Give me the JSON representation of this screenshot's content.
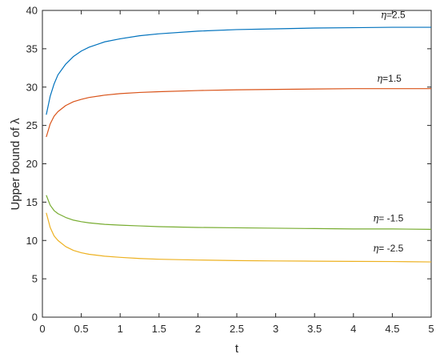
{
  "chart_data": {
    "type": "line",
    "title": "",
    "xlabel": "t",
    "ylabel": "Upper bound of λ",
    "xlim": [
      0,
      5
    ],
    "ylim": [
      0,
      40
    ],
    "xticks": [
      0,
      0.5,
      1,
      1.5,
      2,
      2.5,
      3,
      3.5,
      4,
      4.5,
      5
    ],
    "xtick_labels": [
      "0",
      "0.5",
      "1",
      "1.5",
      "2",
      "2.5",
      "3",
      "3.5",
      "4",
      "4.5",
      "5"
    ],
    "yticks": [
      0,
      5,
      10,
      15,
      20,
      25,
      30,
      35,
      40
    ],
    "ytick_labels": [
      "0",
      "5",
      "10",
      "15",
      "20",
      "25",
      "30",
      "35",
      "40"
    ],
    "grid": false,
    "legend": "none",
    "series": [
      {
        "name": "η=2.5",
        "label_symbol": "η",
        "label_value": "=2.5",
        "color": "#0072BD",
        "x": [
          0.05,
          0.1,
          0.15,
          0.2,
          0.3,
          0.4,
          0.5,
          0.6,
          0.8,
          1.0,
          1.25,
          1.5,
          2.0,
          2.5,
          3.0,
          3.5,
          4.0,
          4.5,
          5.0
        ],
        "y": [
          26.4,
          28.8,
          30.4,
          31.6,
          33.0,
          34.0,
          34.7,
          35.2,
          35.9,
          36.3,
          36.7,
          36.95,
          37.3,
          37.5,
          37.6,
          37.7,
          37.75,
          37.8,
          37.8
        ]
      },
      {
        "name": "η=1.5",
        "label_symbol": "η",
        "label_value": "=1.5",
        "color": "#D95319",
        "x": [
          0.05,
          0.1,
          0.15,
          0.2,
          0.3,
          0.4,
          0.5,
          0.6,
          0.8,
          1.0,
          1.25,
          1.5,
          2.0,
          2.5,
          3.0,
          3.5,
          4.0,
          4.5,
          5.0
        ],
        "y": [
          23.5,
          25.2,
          26.2,
          26.8,
          27.6,
          28.1,
          28.4,
          28.65,
          28.95,
          29.15,
          29.3,
          29.4,
          29.55,
          29.65,
          29.7,
          29.75,
          29.8,
          29.8,
          29.8
        ]
      },
      {
        "name": "η= -1.5",
        "label_symbol": "η",
        "label_value": "= -1.5",
        "color": "#77AC30",
        "x": [
          0.05,
          0.1,
          0.15,
          0.2,
          0.3,
          0.4,
          0.5,
          0.6,
          0.8,
          1.0,
          1.25,
          1.5,
          2.0,
          2.5,
          3.0,
          3.5,
          4.0,
          4.5,
          5.0
        ],
        "y": [
          15.9,
          14.6,
          13.9,
          13.5,
          13.0,
          12.65,
          12.45,
          12.3,
          12.1,
          12.0,
          11.9,
          11.8,
          11.7,
          11.65,
          11.6,
          11.55,
          11.5,
          11.5,
          11.45
        ]
      },
      {
        "name": "η= -2.5",
        "label_symbol": "η",
        "label_value": "= -2.5",
        "color": "#EDB120",
        "x": [
          0.05,
          0.1,
          0.15,
          0.2,
          0.3,
          0.4,
          0.5,
          0.6,
          0.8,
          1.0,
          1.25,
          1.5,
          2.0,
          2.5,
          3.0,
          3.5,
          4.0,
          4.5,
          5.0
        ],
        "y": [
          13.6,
          11.7,
          10.6,
          10.0,
          9.2,
          8.7,
          8.4,
          8.2,
          7.95,
          7.8,
          7.65,
          7.55,
          7.45,
          7.38,
          7.33,
          7.3,
          7.27,
          7.25,
          7.2
        ]
      }
    ]
  }
}
